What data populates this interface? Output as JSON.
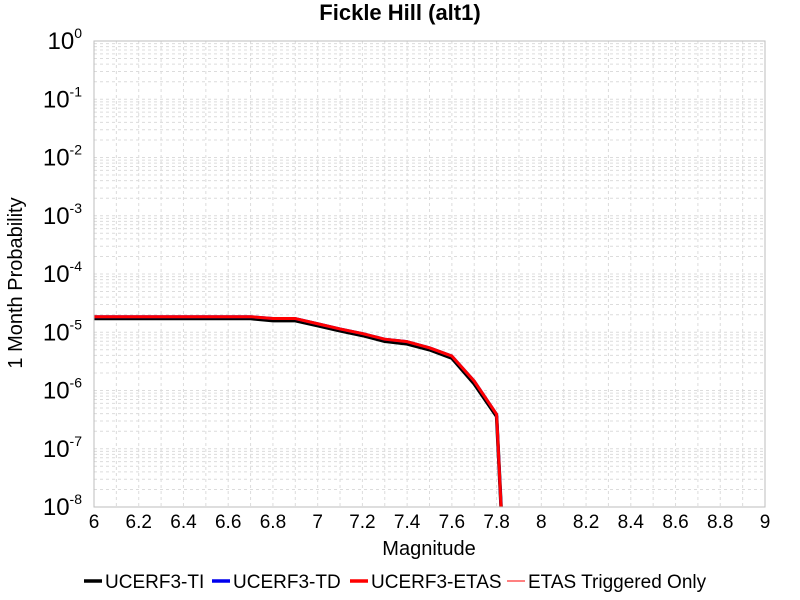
{
  "chart_data": {
    "type": "line",
    "title": "Fickle Hill (alt1)",
    "xlabel": "Magnitude",
    "ylabel": "1 Month Probability",
    "xlim": [
      6,
      9
    ],
    "ylim": [
      1e-08,
      1
    ],
    "yscale": "log",
    "grid": true,
    "legend_position": "bottom",
    "x_ticks": [
      "6",
      "6.2",
      "6.4",
      "6.6",
      "6.8",
      "7",
      "7.2",
      "7.4",
      "7.6",
      "7.8",
      "8",
      "8.2",
      "8.4",
      "8.6",
      "8.8",
      "9"
    ],
    "y_ticks": [
      {
        "base": "10",
        "exp": "0"
      },
      {
        "base": "10",
        "exp": "-1"
      },
      {
        "base": "10",
        "exp": "-2"
      },
      {
        "base": "10",
        "exp": "-3"
      },
      {
        "base": "10",
        "exp": "-4"
      },
      {
        "base": "10",
        "exp": "-5"
      },
      {
        "base": "10",
        "exp": "-6"
      },
      {
        "base": "10",
        "exp": "-7"
      },
      {
        "base": "10",
        "exp": "-8"
      }
    ],
    "series": [
      {
        "name": "UCERF3-TI",
        "color": "#000000",
        "x": [
          6.0,
          6.1,
          6.2,
          6.3,
          6.4,
          6.5,
          6.6,
          6.7,
          6.8,
          6.9,
          7.0,
          7.1,
          7.2,
          7.3,
          7.4,
          7.5,
          7.6,
          7.7,
          7.8,
          7.82
        ],
        "y": [
          1.72e-05,
          1.72e-05,
          1.72e-05,
          1.72e-05,
          1.72e-05,
          1.72e-05,
          1.72e-05,
          1.72e-05,
          1.58e-05,
          1.58e-05,
          1.3e-05,
          1.06e-05,
          8.8e-06,
          7e-06,
          6.3e-06,
          5e-06,
          3.6e-06,
          1.3e-06,
          3.6e-07,
          1e-08
        ]
      },
      {
        "name": "UCERF3-TD",
        "color": "#0000ee",
        "x": [
          6.0,
          6.1,
          6.2,
          6.3,
          6.4,
          6.5,
          6.6,
          6.7,
          6.8,
          6.9,
          7.0,
          7.1,
          7.2,
          7.3,
          7.4,
          7.5,
          7.6,
          7.7,
          7.8,
          7.82
        ],
        "y": [
          1.85e-05,
          1.85e-05,
          1.85e-05,
          1.85e-05,
          1.85e-05,
          1.85e-05,
          1.85e-05,
          1.85e-05,
          1.72e-05,
          1.72e-05,
          1.4e-05,
          1.14e-05,
          9.5e-06,
          7.6e-06,
          6.9e-06,
          5.4e-06,
          3.9e-06,
          1.45e-06,
          3.9e-07,
          1e-08
        ]
      },
      {
        "name": "UCERF3-ETAS",
        "color": "#ff0000",
        "x": [
          6.0,
          6.1,
          6.2,
          6.3,
          6.4,
          6.5,
          6.6,
          6.7,
          6.8,
          6.9,
          7.0,
          7.1,
          7.2,
          7.3,
          7.4,
          7.5,
          7.6,
          7.7,
          7.8,
          7.82
        ],
        "y": [
          1.85e-05,
          1.85e-05,
          1.85e-05,
          1.85e-05,
          1.85e-05,
          1.85e-05,
          1.85e-05,
          1.85e-05,
          1.72e-05,
          1.72e-05,
          1.4e-05,
          1.14e-05,
          9.5e-06,
          7.6e-06,
          6.9e-06,
          5.4e-06,
          3.9e-06,
          1.45e-06,
          3.9e-07,
          1e-08
        ]
      },
      {
        "name": "ETAS Triggered Only",
        "color": "#ff8080",
        "x": [],
        "y": []
      }
    ]
  }
}
